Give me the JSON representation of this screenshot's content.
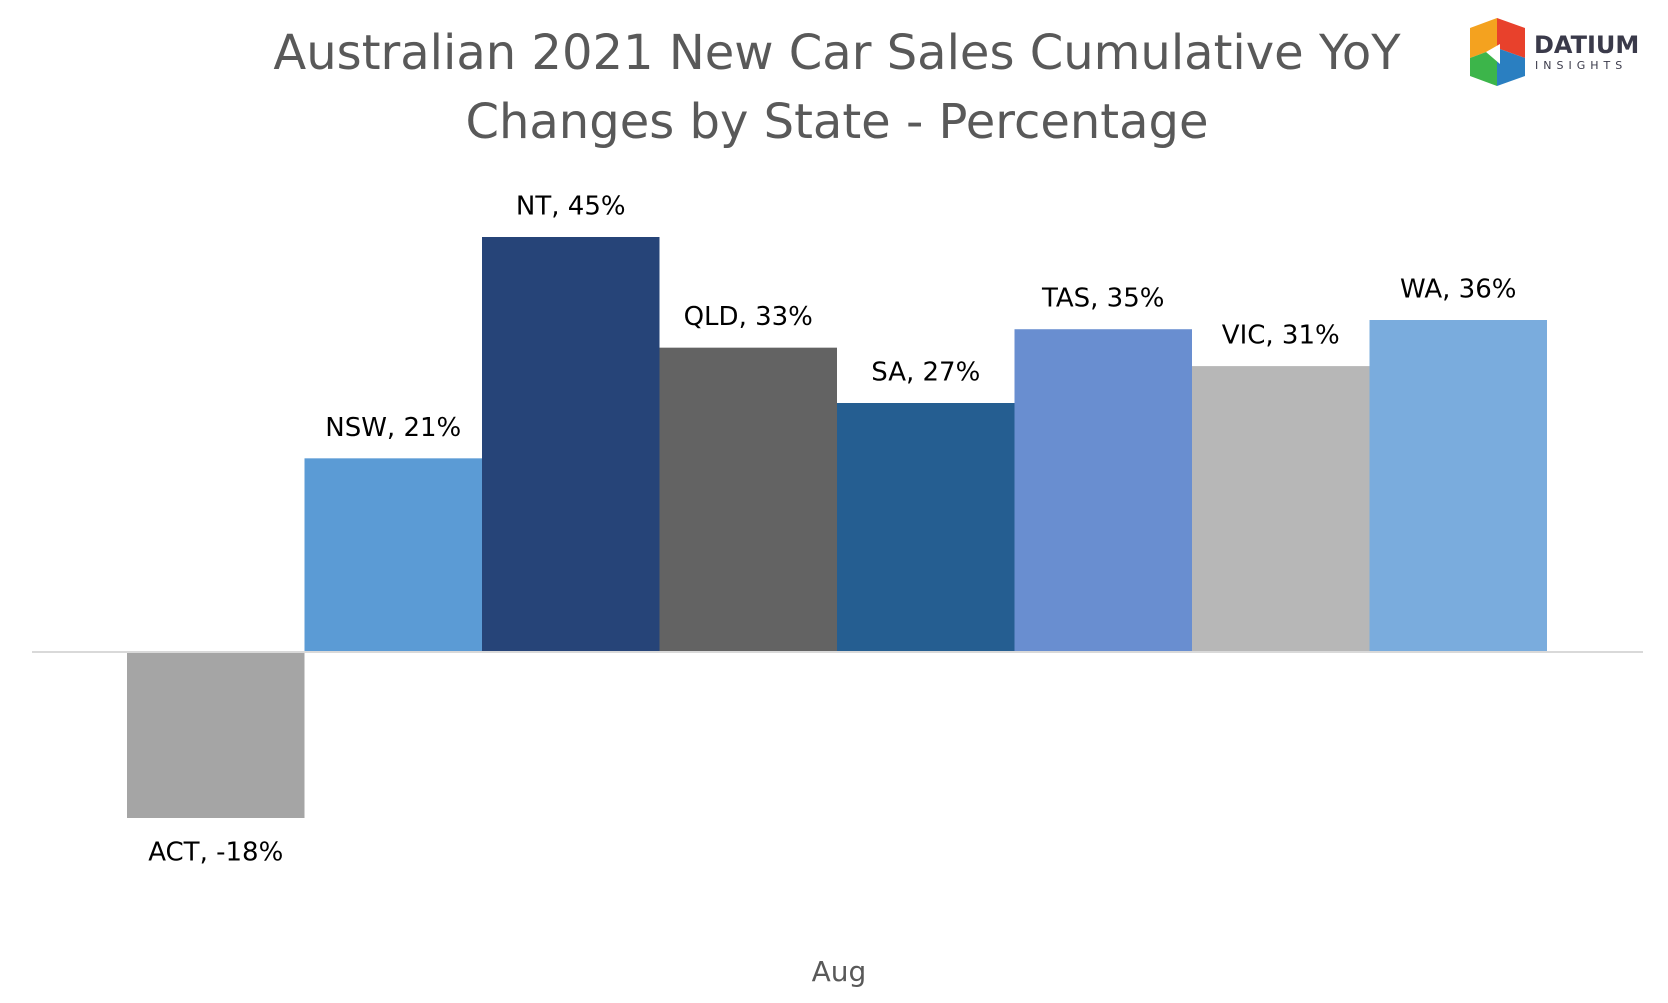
{
  "chart_data": {
    "type": "bar",
    "title": [
      "Australian 2021 New Car Sales Cumulative YoY",
      "Changes by State - Percentage"
    ],
    "logo": {
      "name": "DATIUM",
      "tagline": "INSIGHTS"
    },
    "categories": [
      "Aug"
    ],
    "series": [
      {
        "name": "ACT",
        "color": "#a5a5a5",
        "values": [
          -18
        ],
        "value_labels": [
          "ACT, -18%"
        ]
      },
      {
        "name": "NSW",
        "color": "#5b9bd5",
        "values": [
          21
        ],
        "value_labels": [
          "NSW, 21%"
        ]
      },
      {
        "name": "NT",
        "color": "#264478",
        "values": [
          45
        ],
        "value_labels": [
          "NT, 45%"
        ]
      },
      {
        "name": "QLD",
        "color": "#636363",
        "values": [
          33
        ],
        "value_labels": [
          "QLD, 33%"
        ]
      },
      {
        "name": "SA",
        "color": "#255e91",
        "values": [
          27
        ],
        "value_labels": [
          "SA, 27%"
        ]
      },
      {
        "name": "TAS",
        "color": "#698ed0",
        "values": [
          35
        ],
        "value_labels": [
          "TAS, 35%"
        ]
      },
      {
        "name": "VIC",
        "color": "#b7b7b7",
        "values": [
          31
        ],
        "value_labels": [
          "VIC, 31%"
        ]
      },
      {
        "name": "WA",
        "color": "#7aacdd",
        "values": [
          36
        ],
        "value_labels": [
          "WA, 36%"
        ]
      }
    ]
  }
}
